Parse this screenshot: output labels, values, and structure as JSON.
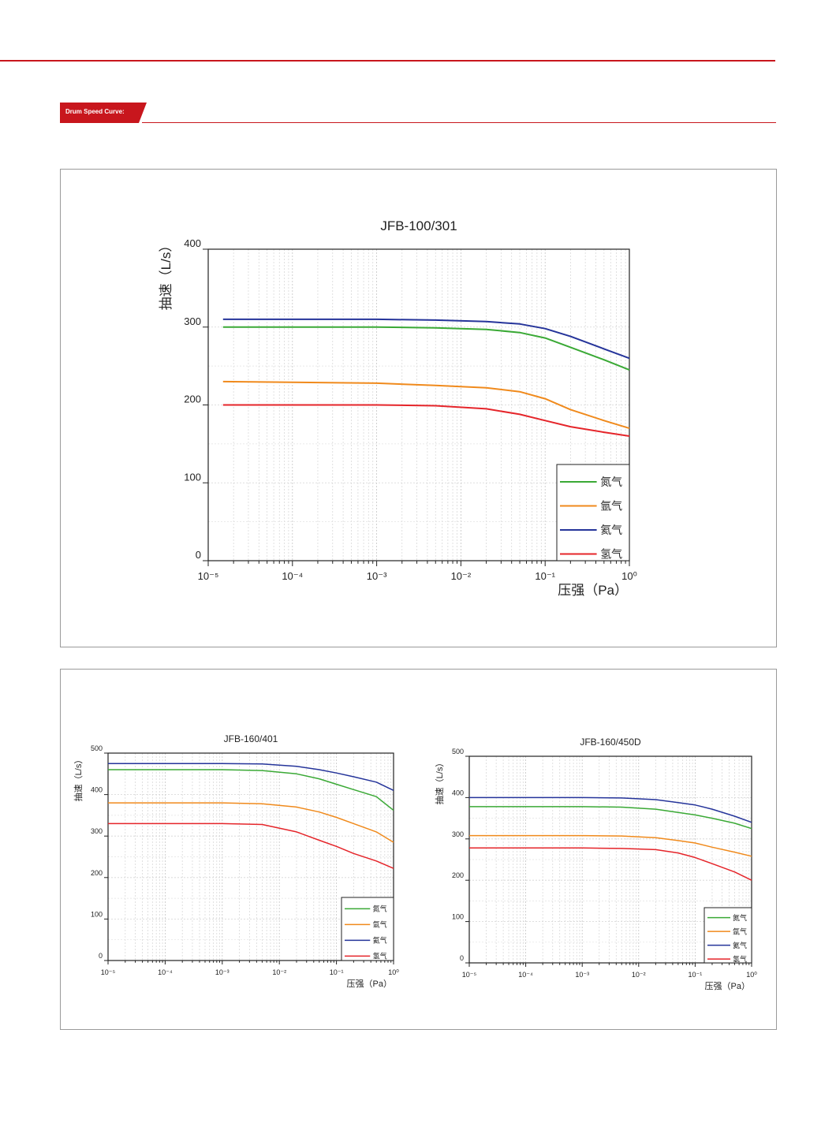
{
  "header": {
    "section_label": "Drum Speed Curve:",
    "accent_color": "#c8161d"
  },
  "chart_data": [
    {
      "type": "line",
      "title": "JFB-100/301",
      "xlabel": "压强（Pa）",
      "ylabel": "抽速（L/s）",
      "x_scale": "log",
      "x_ticks": [
        {
          "value": 1e-05,
          "label": "10⁻⁵"
        },
        {
          "value": 0.0001,
          "label": "10⁻⁴"
        },
        {
          "value": 0.001,
          "label": "10⁻³"
        },
        {
          "value": 0.01,
          "label": "10⁻²"
        },
        {
          "value": 0.1,
          "label": "10⁻¹"
        },
        {
          "value": 1,
          "label": "10⁰"
        }
      ],
      "xlim": [
        1e-05,
        1
      ],
      "ylim": [
        0,
        400
      ],
      "y_ticks": [
        0,
        100,
        200,
        300,
        400
      ],
      "grid": true,
      "legend_position": "bottom-right",
      "series": [
        {
          "name": "氮气",
          "color": "#3aa935",
          "x": [
            1.5e-05,
            0.001,
            0.005,
            0.02,
            0.05,
            0.1,
            0.2,
            0.5,
            1
          ],
          "y": [
            300,
            300,
            299,
            297,
            293,
            286,
            274,
            258,
            245
          ]
        },
        {
          "name": "氩气",
          "color": "#f08a1c",
          "x": [
            1.5e-05,
            0.001,
            0.005,
            0.02,
            0.05,
            0.1,
            0.2,
            0.5,
            1
          ],
          "y": [
            230,
            228,
            225,
            222,
            217,
            208,
            194,
            180,
            170
          ]
        },
        {
          "name": "氦气",
          "color": "#25349a",
          "x": [
            1.5e-05,
            0.001,
            0.005,
            0.02,
            0.05,
            0.1,
            0.2,
            0.5,
            1
          ],
          "y": [
            310,
            310,
            309,
            307,
            304,
            298,
            288,
            272,
            260
          ]
        },
        {
          "name": "氢气",
          "color": "#e5252a",
          "x": [
            1.5e-05,
            0.001,
            0.005,
            0.02,
            0.05,
            0.1,
            0.2,
            0.5,
            1
          ],
          "y": [
            200,
            200,
            199,
            195,
            188,
            180,
            172,
            165,
            160
          ]
        }
      ]
    },
    {
      "type": "line",
      "title": "JFB-160/401",
      "xlabel": "压强（Pa）",
      "ylabel": "抽速（L/s）",
      "x_scale": "log",
      "x_ticks": [
        {
          "value": 1e-05,
          "label": "10⁻⁵"
        },
        {
          "value": 0.0001,
          "label": "10⁻⁴"
        },
        {
          "value": 0.001,
          "label": "10⁻³"
        },
        {
          "value": 0.01,
          "label": "10⁻²"
        },
        {
          "value": 0.1,
          "label": "10⁻¹"
        },
        {
          "value": 1,
          "label": "10⁰"
        }
      ],
      "xlim": [
        1e-05,
        1
      ],
      "ylim": [
        0,
        500
      ],
      "y_ticks": [
        0,
        100,
        200,
        300,
        400,
        500
      ],
      "grid": true,
      "legend_position": "bottom-right",
      "series": [
        {
          "name": "氮气",
          "color": "#3aa935",
          "x": [
            1e-05,
            0.001,
            0.005,
            0.02,
            0.05,
            0.1,
            0.2,
            0.5,
            1
          ],
          "y": [
            460,
            460,
            458,
            450,
            438,
            425,
            412,
            395,
            362
          ]
        },
        {
          "name": "氩气",
          "color": "#f08a1c",
          "x": [
            1e-05,
            0.001,
            0.005,
            0.02,
            0.05,
            0.1,
            0.2,
            0.5,
            1
          ],
          "y": [
            380,
            380,
            378,
            370,
            358,
            345,
            330,
            310,
            285
          ]
        },
        {
          "name": "氦气",
          "color": "#25349a",
          "x": [
            1e-05,
            0.001,
            0.005,
            0.02,
            0.05,
            0.1,
            0.2,
            0.5,
            1
          ],
          "y": [
            475,
            475,
            474,
            468,
            460,
            452,
            443,
            430,
            410
          ]
        },
        {
          "name": "氢气",
          "color": "#e5252a",
          "x": [
            1e-05,
            0.001,
            0.005,
            0.02,
            0.05,
            0.1,
            0.2,
            0.5,
            1
          ],
          "y": [
            330,
            330,
            328,
            310,
            290,
            275,
            258,
            240,
            222
          ]
        }
      ]
    },
    {
      "type": "line",
      "title": "JFB-160/450D",
      "xlabel": "压强（Pa）",
      "ylabel": "抽速（L/s）",
      "x_scale": "log",
      "x_ticks": [
        {
          "value": 1e-05,
          "label": "10⁻⁵"
        },
        {
          "value": 0.0001,
          "label": "10⁻⁴"
        },
        {
          "value": 0.001,
          "label": "10⁻³"
        },
        {
          "value": 0.01,
          "label": "10⁻²"
        },
        {
          "value": 0.1,
          "label": "10⁻¹"
        },
        {
          "value": 1,
          "label": "10⁰"
        }
      ],
      "xlim": [
        1e-05,
        1
      ],
      "ylim": [
        0,
        500
      ],
      "y_ticks": [
        0,
        100,
        200,
        300,
        400,
        500
      ],
      "grid": true,
      "legend_position": "bottom-right",
      "series": [
        {
          "name": "氮气",
          "color": "#3aa935",
          "x": [
            1e-05,
            0.001,
            0.005,
            0.02,
            0.05,
            0.1,
            0.2,
            0.5,
            1
          ],
          "y": [
            378,
            378,
            377,
            372,
            364,
            358,
            350,
            338,
            325
          ]
        },
        {
          "name": "氩气",
          "color": "#f08a1c",
          "x": [
            1e-05,
            0.001,
            0.005,
            0.02,
            0.05,
            0.1,
            0.2,
            0.5,
            1
          ],
          "y": [
            308,
            308,
            307,
            303,
            296,
            290,
            280,
            268,
            258
          ]
        },
        {
          "name": "氦气",
          "color": "#25349a",
          "x": [
            1e-05,
            0.001,
            0.005,
            0.02,
            0.05,
            0.1,
            0.2,
            0.5,
            1
          ],
          "y": [
            400,
            400,
            399,
            395,
            388,
            382,
            372,
            355,
            340
          ]
        },
        {
          "name": "氢气",
          "color": "#e5252a",
          "x": [
            1e-05,
            0.001,
            0.005,
            0.02,
            0.05,
            0.1,
            0.2,
            0.5,
            1
          ],
          "y": [
            278,
            278,
            277,
            274,
            266,
            255,
            240,
            220,
            200
          ]
        }
      ]
    }
  ]
}
